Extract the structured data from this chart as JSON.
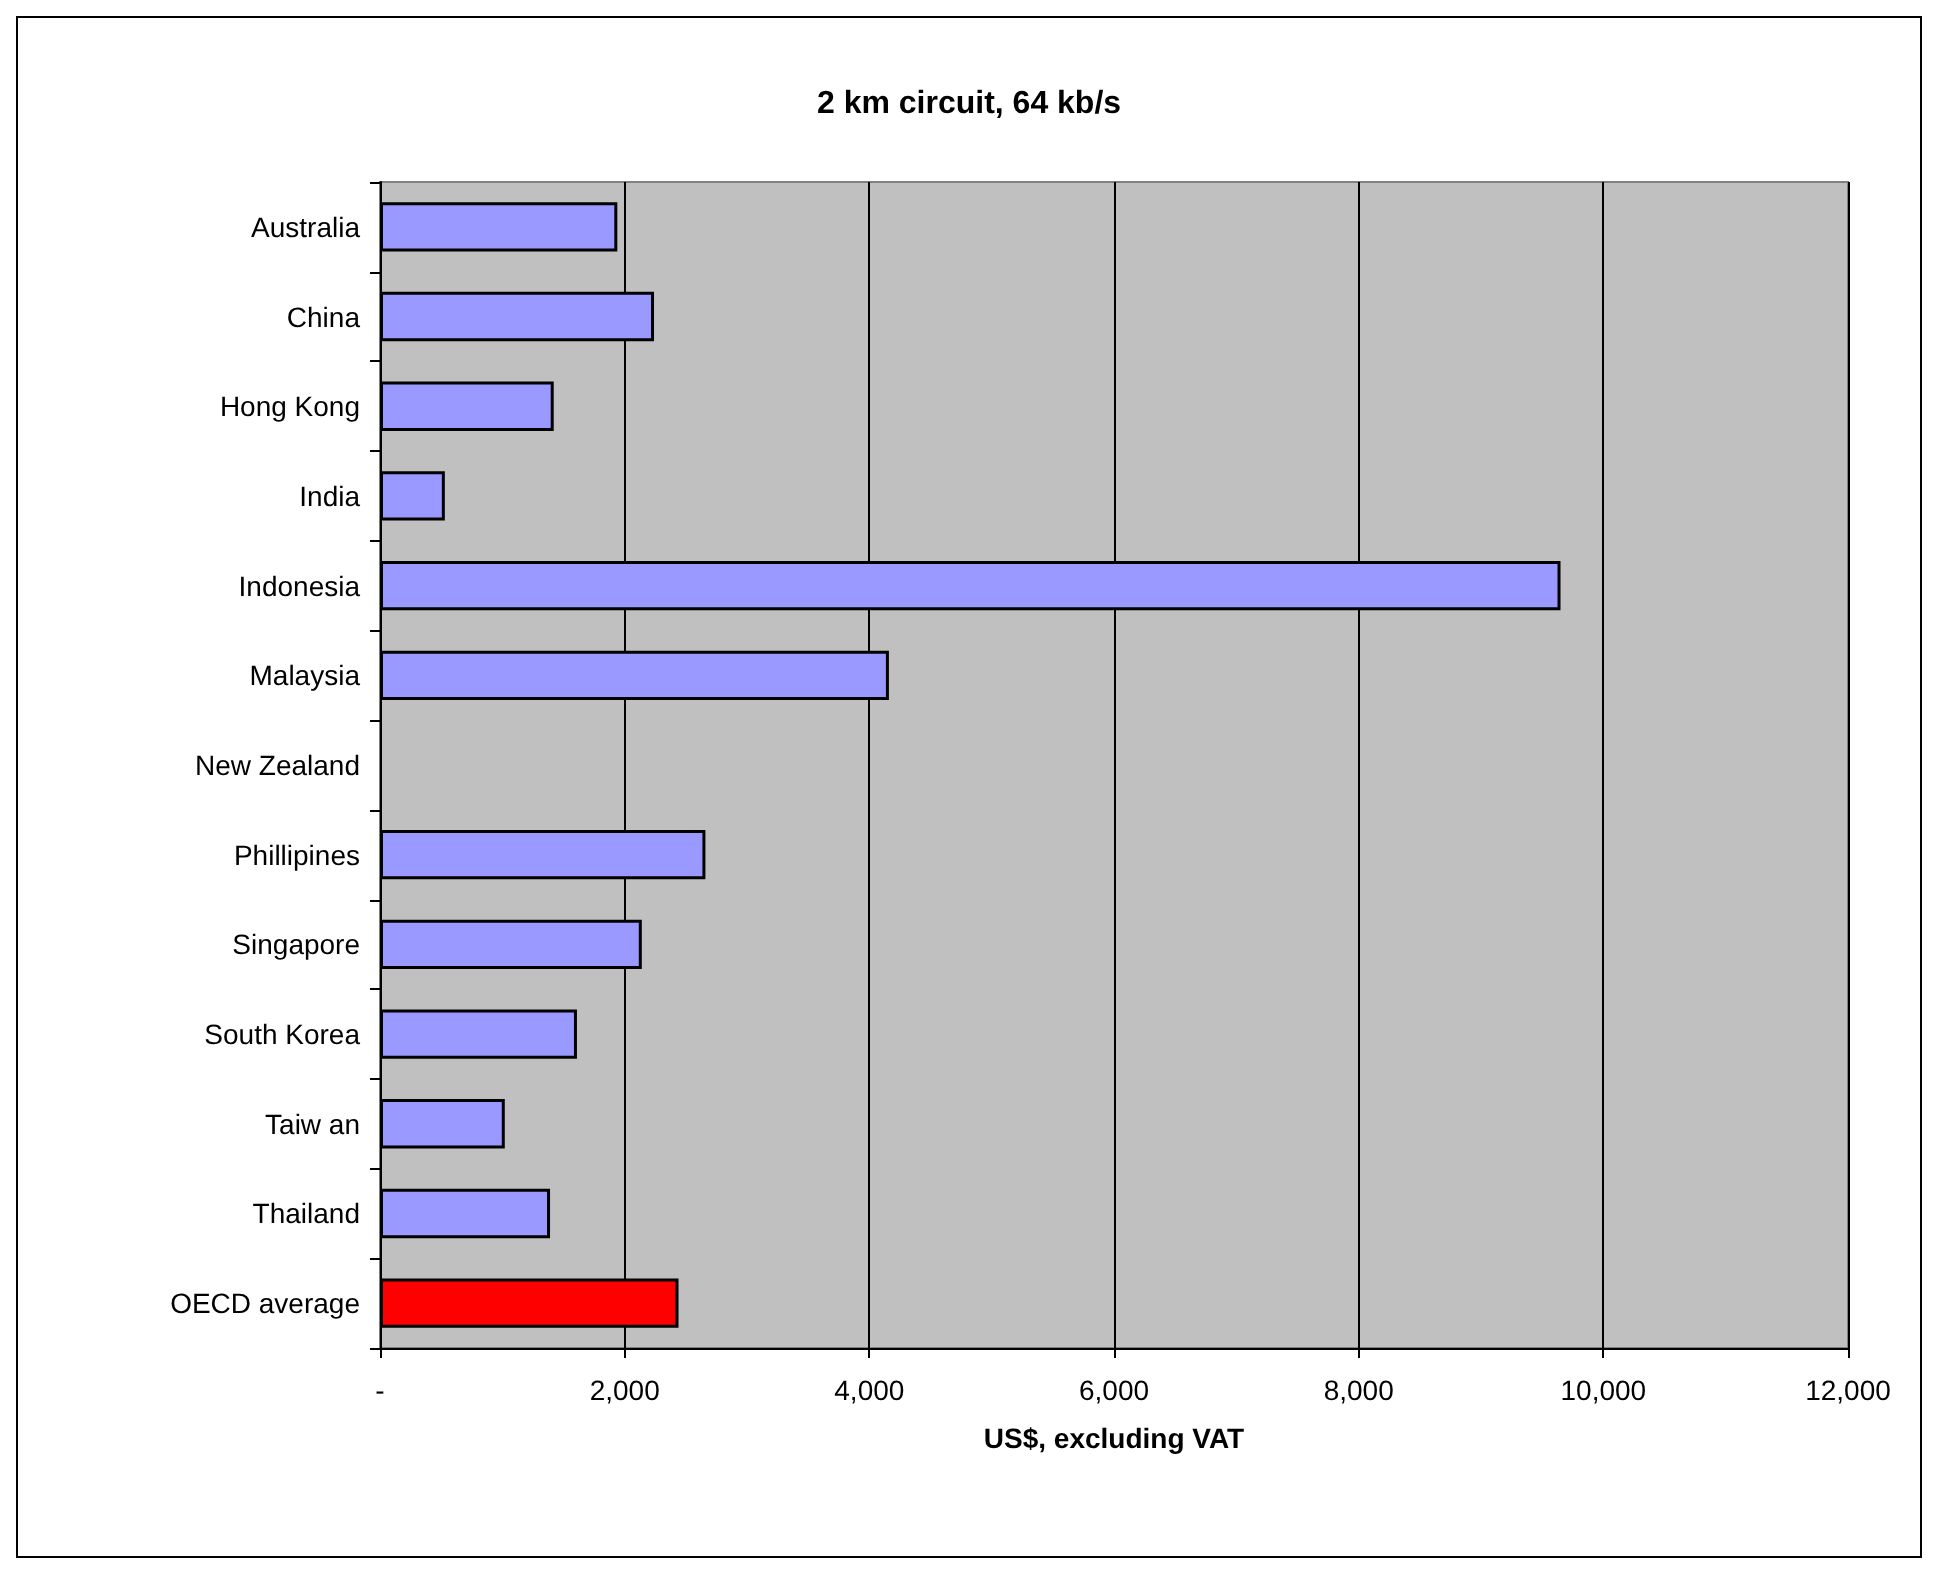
{
  "chart_data": {
    "type": "bar",
    "orientation": "horizontal",
    "title": "2 km circuit, 64 kb/s",
    "xlabel": "US$, excluding VAT",
    "categories": [
      "Australia",
      "China",
      "Hong Kong",
      "India",
      "Indonesia",
      "Malaysia",
      "New Zealand",
      "Phillipines",
      "Singapore",
      "South Korea",
      "Taiw an",
      "Thailand",
      "OECD average"
    ],
    "values": [
      1940,
      2240,
      1420,
      530,
      9650,
      4160,
      null,
      2660,
      2140,
      1610,
      1020,
      1390,
      2440
    ],
    "colors": [
      "#9999ff",
      "#9999ff",
      "#9999ff",
      "#9999ff",
      "#9999ff",
      "#9999ff",
      "#9999ff",
      "#9999ff",
      "#9999ff",
      "#9999ff",
      "#9999ff",
      "#9999ff",
      "#ff0000"
    ],
    "xlim": [
      0,
      12000
    ],
    "xticks": [
      {
        "value": 0,
        "label": "-"
      },
      {
        "value": 2000,
        "label": "2,000"
      },
      {
        "value": 4000,
        "label": "4,000"
      },
      {
        "value": 6000,
        "label": "6,000"
      },
      {
        "value": 8000,
        "label": "8,000"
      },
      {
        "value": 10000,
        "label": "10,000"
      },
      {
        "value": 12000,
        "label": "12,000"
      }
    ],
    "grid": "x"
  }
}
